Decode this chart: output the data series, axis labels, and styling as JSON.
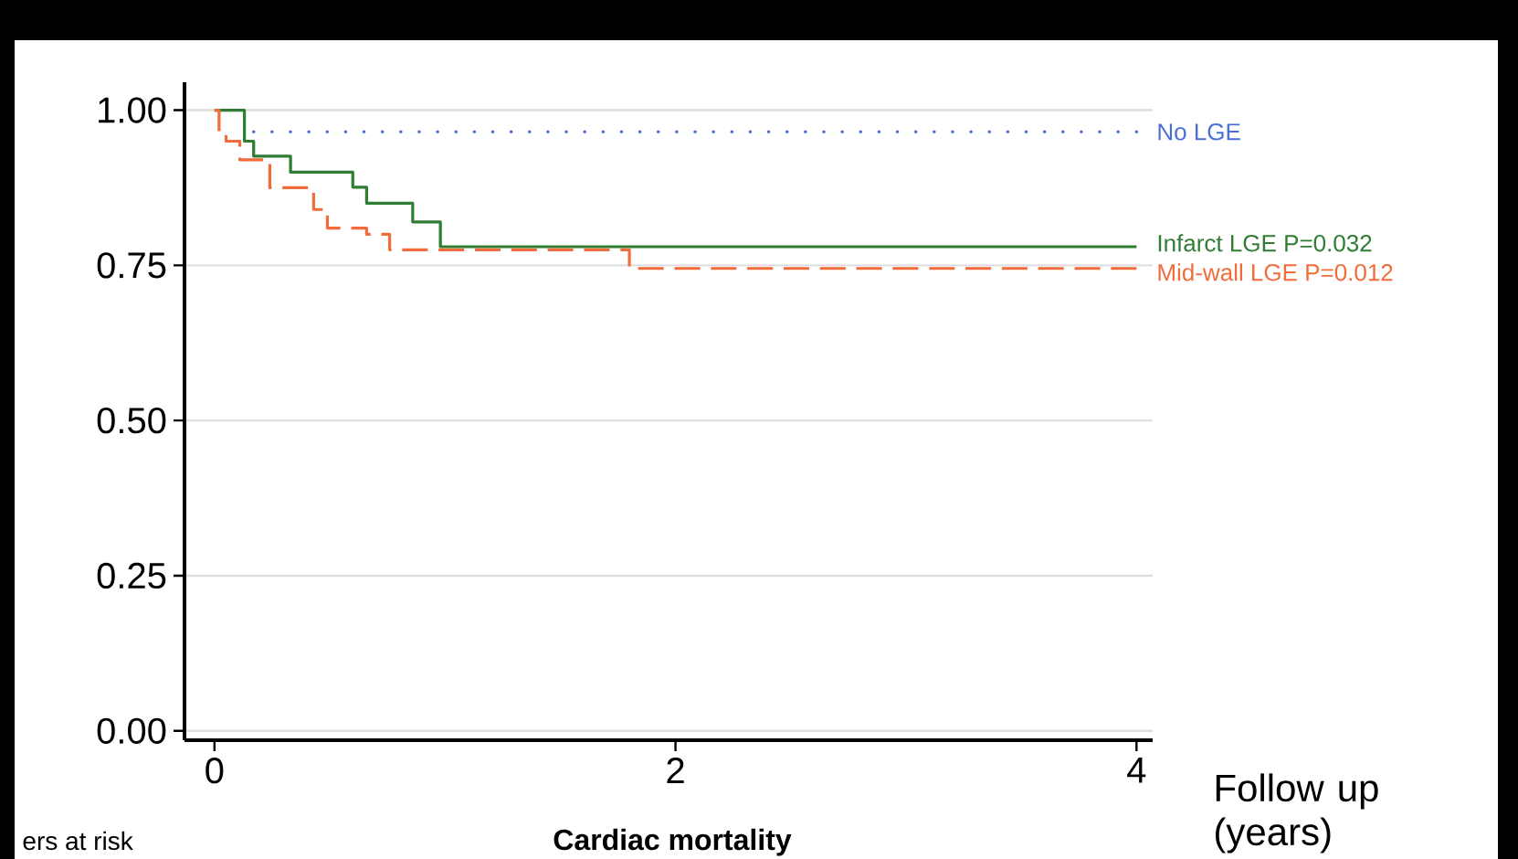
{
  "chart_data": {
    "type": "step",
    "xlabel": "Follow up (years)",
    "annotations": [
      "Cardiac mortality",
      "ers at risk"
    ],
    "series": [
      {
        "name": "No LGE",
        "color": "#4a6fd8",
        "line_style": "dotted",
        "x": [
          0.17,
          4
        ],
        "values": [
          0.965,
          0.965
        ]
      },
      {
        "name": "Infarct LGE P=0.032",
        "color": "#2e7d32",
        "line_style": "solid",
        "x": [
          0,
          0.13,
          0.17,
          0.33,
          0.6,
          0.66,
          0.86,
          0.98,
          4
        ],
        "values": [
          1.0,
          0.95,
          0.926,
          0.9,
          0.876,
          0.85,
          0.82,
          0.78,
          0.78
        ]
      },
      {
        "name": "Mid-wall LGE P=0.012",
        "color": "#f26b3a",
        "line_style": "dashed",
        "x": [
          0,
          0.02,
          0.05,
          0.11,
          0.24,
          0.43,
          0.49,
          0.66,
          0.76,
          1.8,
          4
        ],
        "values": [
          1.0,
          0.965,
          0.95,
          0.92,
          0.875,
          0.84,
          0.81,
          0.8,
          0.775,
          0.745,
          0.745
        ]
      }
    ],
    "xlim": [
      -0.13,
      4.07
    ],
    "ylim": [
      -0.015,
      1.045
    ],
    "xticks": [
      0,
      2,
      4
    ],
    "yticks": [
      {
        "value": 0,
        "label": "0.00"
      },
      {
        "value": 0.25,
        "label": "0.25"
      },
      {
        "value": 0.5,
        "label": "0.50"
      },
      {
        "value": 0.75,
        "label": "0.75"
      },
      {
        "value": 1,
        "label": "1.00"
      }
    ],
    "grid": "y"
  }
}
